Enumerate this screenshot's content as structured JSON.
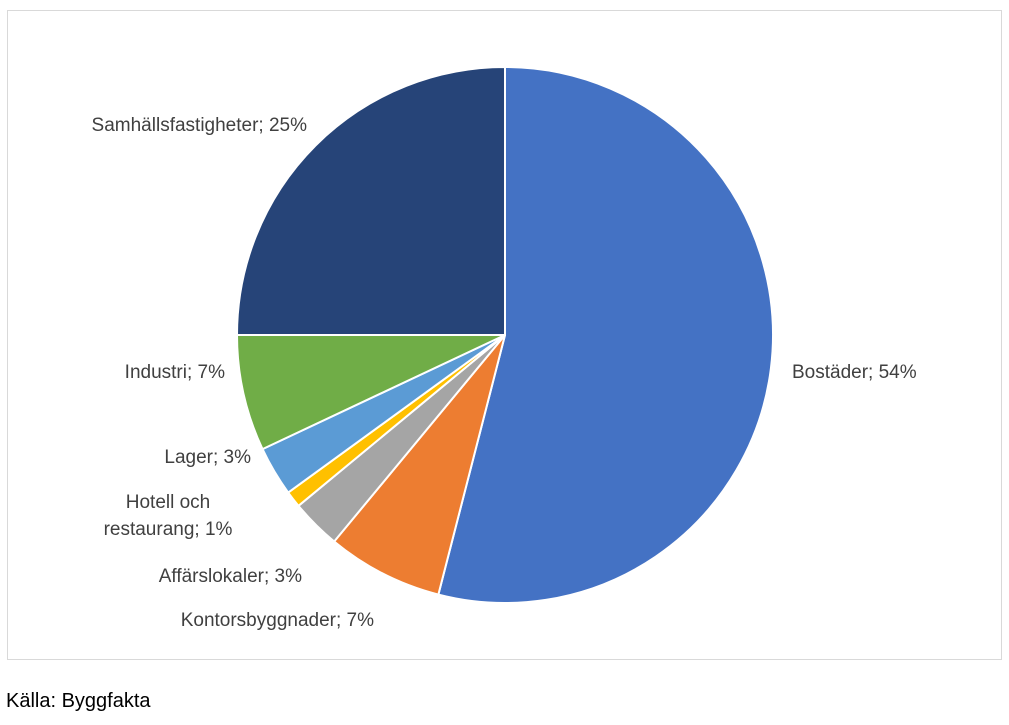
{
  "chart_data": {
    "type": "pie",
    "slices": [
      {
        "label": "Bostäder",
        "value": 54,
        "display": "Bostäder; 54%",
        "color": "#4472C4"
      },
      {
        "label": "Kontorsbyggnader",
        "value": 7,
        "display": "Kontorsbyggnader; 7%",
        "color": "#ED7D31"
      },
      {
        "label": "Affärslokaler",
        "value": 3,
        "display": "Affärslokaler; 3%",
        "color": "#A5A5A5"
      },
      {
        "label": "Hotell och restaurang",
        "value": 1,
        "display": "Hotell och restaurang; 1%",
        "display_lines": [
          "Hotell och",
          "restaurang; 1%"
        ],
        "color": "#FFC000"
      },
      {
        "label": "Lager",
        "value": 3,
        "display": "Lager; 3%",
        "color": "#5B9BD5"
      },
      {
        "label": "Industri",
        "value": 7,
        "display": "Industri; 7%",
        "color": "#70AD47"
      },
      {
        "label": "Samhällsfastigheter",
        "value": 25,
        "display": "Samhällsfastigheter; 25%",
        "color": "#264478"
      }
    ]
  },
  "source_text": "Källa: Byggfakta"
}
